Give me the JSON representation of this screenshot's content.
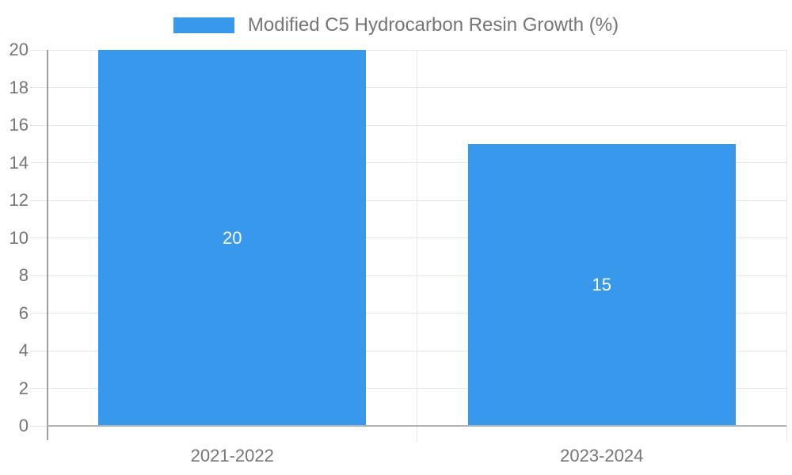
{
  "legend": {
    "label": "Modified C5 Hydrocarbon Resin Growth (%)"
  },
  "chart_data": {
    "type": "bar",
    "title": "",
    "xlabel": "",
    "ylabel": "",
    "categories": [
      "2021-2022",
      "2023-2024"
    ],
    "series": [
      {
        "name": "Modified C5 Hydrocarbon Resin Growth (%)",
        "values": [
          20,
          15
        ]
      }
    ],
    "bar_value_labels": [
      "20",
      "15"
    ],
    "ylim": [
      0,
      20
    ],
    "yticks": [
      0,
      2,
      4,
      6,
      8,
      10,
      12,
      14,
      16,
      18,
      20
    ],
    "grid": true,
    "legend_position": "top",
    "colors": {
      "bar": "#3899EC",
      "bar_label": "#FFFFFF",
      "axis_text": "#757575",
      "gridline": "#E6E6E6",
      "x_axis_line": "#B3B3B3",
      "y_axis_line": "#9E9E9E"
    }
  }
}
